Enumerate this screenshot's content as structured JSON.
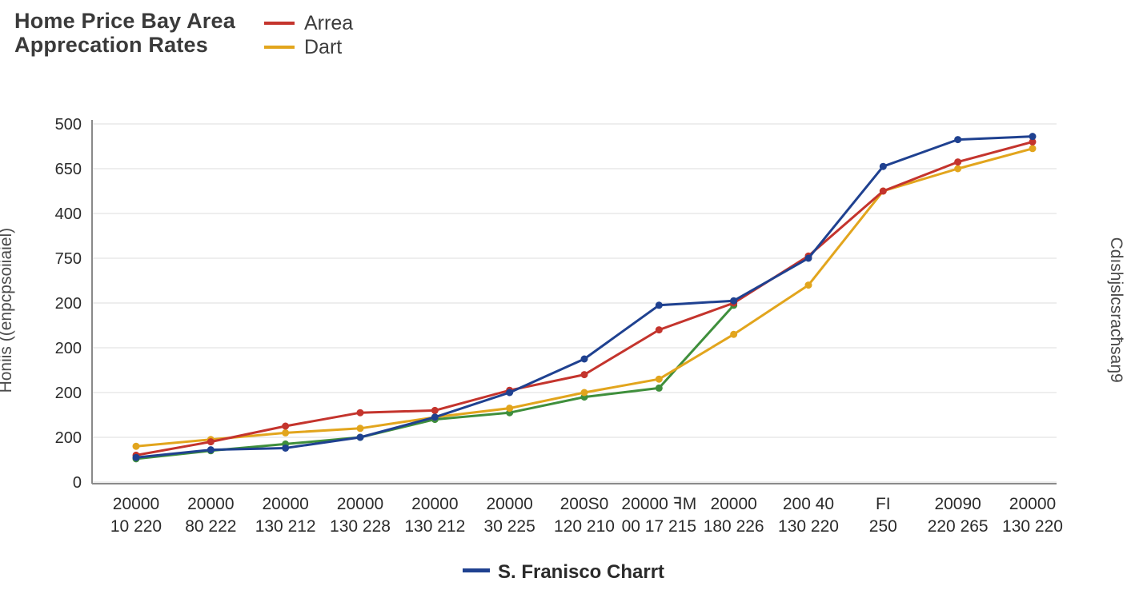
{
  "title": {
    "line1": "Home Price Bay Area",
    "line2": "Apprecation Rates"
  },
  "legend_top": [
    {
      "label": "Arrea",
      "color": "#c4342d"
    },
    {
      "label": "Dart",
      "color": "#e2a51d"
    }
  ],
  "legend_bottom": {
    "label": "S. Franisco Charrt",
    "color": "#1f4190"
  },
  "y_axis_label_left": "Honiis ((enpcpsoiiaiel)",
  "y_axis_label_right": "Cdıshjslcsracħsaŋ9",
  "colors": {
    "blue": "#1f4190",
    "red": "#c4342d",
    "yellow": "#e2a51d",
    "green": "#3f8f3c",
    "grid": "#dcdcdc",
    "axis": "#8a8a8a",
    "tick_text": "#2b2b2b"
  },
  "chart_data": {
    "type": "line",
    "title": "Home Price Bay Area Apprecation Rates",
    "grid": true,
    "legend_position": "top-and-bottom",
    "y_tick_labels_bottom_to_top": [
      "0",
      "200",
      "200",
      "200",
      "200",
      "750",
      "400",
      "650",
      "500"
    ],
    "y_axis_note": "values expressed in gridline units 0 (bottom) to 8 (top)",
    "x_tick_labels": [
      {
        "top": "20000",
        "bottom": "10 220"
      },
      {
        "top": "20000",
        "bottom": "80 222"
      },
      {
        "top": "20000",
        "bottom": "130 212"
      },
      {
        "top": "20000",
        "bottom": "130 228"
      },
      {
        "top": "20000",
        "bottom": "130 212"
      },
      {
        "top": "20000",
        "bottom": "30 225"
      },
      {
        "top": "200S0",
        "bottom": "120 210"
      },
      {
        "top": "20000 ꟻM",
        "bottom": "00 17 215"
      },
      {
        "top": "20000",
        "bottom": "180 226"
      },
      {
        "top": "200 40",
        "bottom": "130 220"
      },
      {
        "top": "FI",
        "bottom": "250"
      },
      {
        "top": "20090",
        "bottom": "220 265"
      },
      {
        "top": "20000",
        "bottom": "130 220"
      }
    ],
    "series": [
      {
        "name": "unlabeled-green",
        "color": "#3f8f3c",
        "values": [
          0.52,
          0.7,
          0.85,
          1.0,
          1.4,
          1.55,
          1.9,
          2.1,
          3.95,
          null,
          null,
          null,
          null
        ]
      },
      {
        "name": "Dart",
        "color": "#e2a51d",
        "values": [
          0.8,
          0.95,
          1.1,
          1.2,
          1.45,
          1.65,
          2.0,
          2.3,
          3.3,
          4.4,
          6.5,
          7.0,
          7.45
        ]
      },
      {
        "name": "Arrea",
        "color": "#c4342d",
        "values": [
          0.6,
          0.9,
          1.25,
          1.55,
          1.6,
          2.05,
          2.4,
          3.4,
          4.0,
          5.05,
          6.5,
          7.15,
          7.6
        ]
      },
      {
        "name": "S. Franisco Charrt",
        "color": "#1f4190",
        "values": [
          0.55,
          0.72,
          0.76,
          1.0,
          1.45,
          2.0,
          2.75,
          3.95,
          4.05,
          5.0,
          7.05,
          7.65,
          7.72
        ]
      }
    ]
  }
}
